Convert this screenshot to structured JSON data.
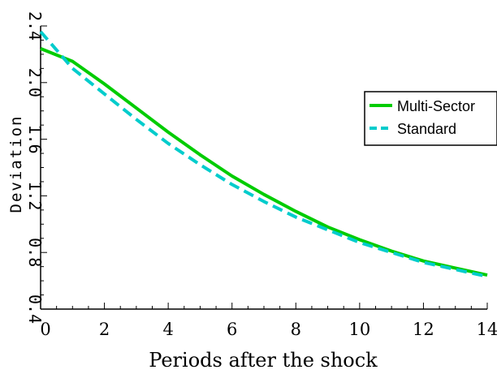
{
  "chart_data": {
    "type": "line",
    "xlabel": "Periods after the shock",
    "ylabel": "Deviation",
    "xlim": [
      0,
      14
    ],
    "ylim": [
      0.4,
      2.4
    ],
    "x_ticks": [
      0,
      2,
      4,
      6,
      8,
      10,
      12,
      14
    ],
    "y_ticks": [
      "0.4",
      "0.8",
      "1.2",
      "1.6",
      "2.0",
      "2.4"
    ],
    "legend_position": "right",
    "series": [
      {
        "name": "Multi-Sector",
        "color": "#00cc00",
        "style": "solid",
        "x": [
          0,
          1,
          2,
          3,
          4,
          5,
          6,
          7,
          8,
          9,
          10,
          11,
          12,
          13,
          14
        ],
        "y": [
          2.24,
          2.15,
          1.99,
          1.82,
          1.65,
          1.49,
          1.34,
          1.21,
          1.09,
          0.98,
          0.89,
          0.81,
          0.74,
          0.69,
          0.64
        ]
      },
      {
        "name": "Standard",
        "color": "#00cccc",
        "style": "dashed",
        "x": [
          0,
          1,
          2,
          3,
          4,
          5,
          6,
          7,
          8,
          9,
          10,
          11,
          12,
          13,
          14
        ],
        "y": [
          2.36,
          2.1,
          1.92,
          1.74,
          1.57,
          1.42,
          1.28,
          1.16,
          1.05,
          0.96,
          0.87,
          0.8,
          0.73,
          0.68,
          0.63
        ]
      }
    ]
  }
}
